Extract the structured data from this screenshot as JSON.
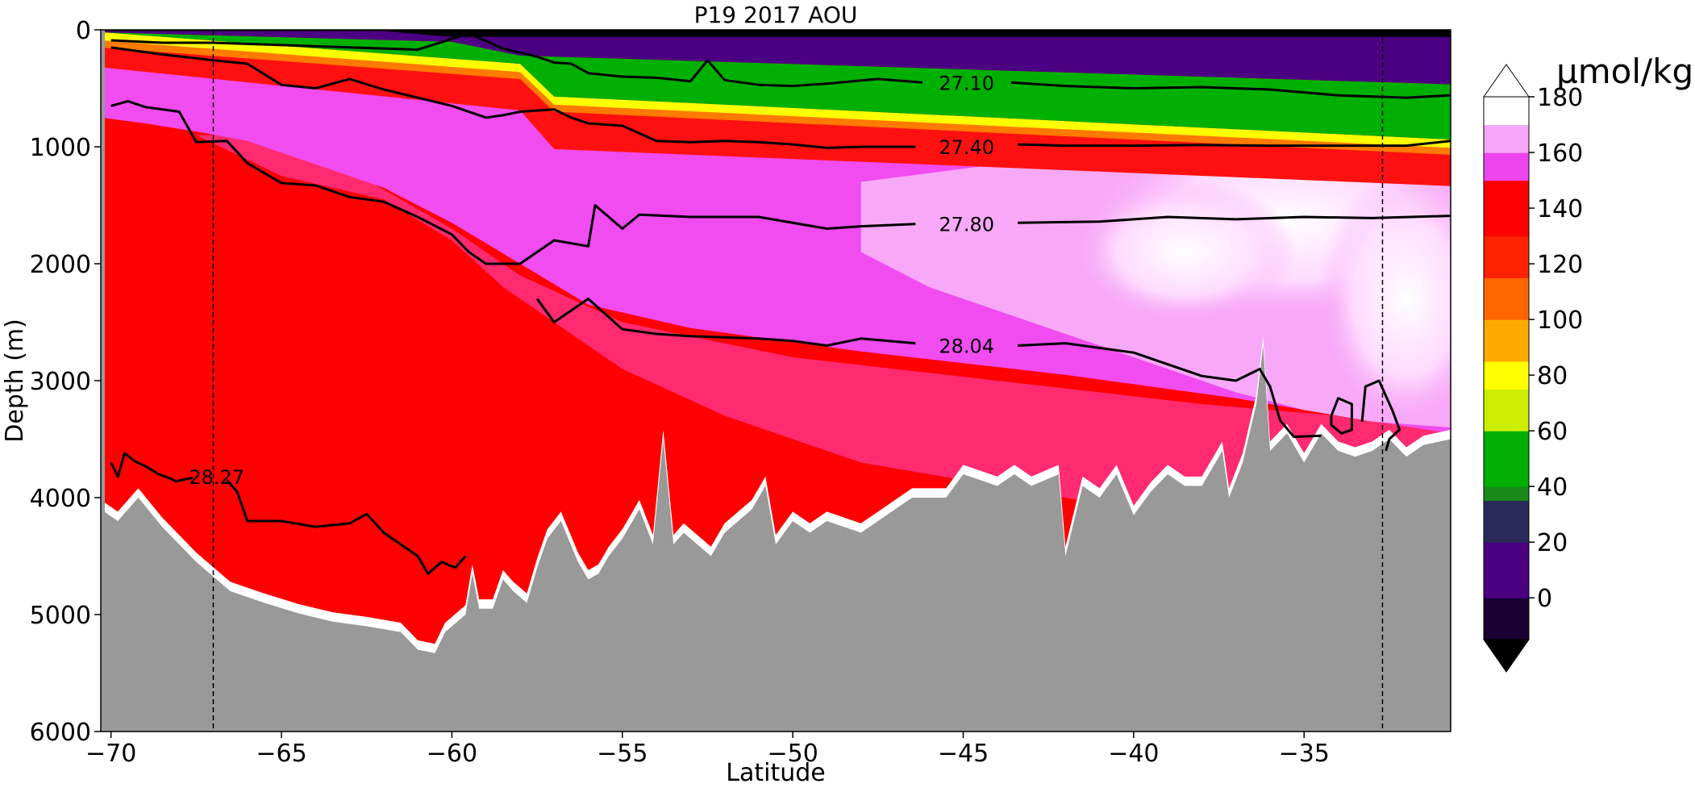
{
  "chart_data": {
    "type": "heatmap",
    "title": "P19 2017 AOU",
    "xlabel": "Latitude",
    "ylabel": "Depth (m)",
    "xlim": [
      -70.3,
      -30.7
    ],
    "ylim": [
      6000,
      0
    ],
    "x_ticks": [
      -70,
      -65,
      -60,
      -55,
      -50,
      -45,
      -40,
      -35
    ],
    "x_tick_labels": [
      "−70",
      "−65",
      "−60",
      "−55",
      "−50",
      "−45",
      "−40",
      "−35"
    ],
    "y_ticks": [
      0,
      1000,
      2000,
      3000,
      4000,
      5000,
      6000
    ],
    "y_tick_labels": [
      "0",
      "1000",
      "2000",
      "3000",
      "4000",
      "5000",
      "6000"
    ],
    "colorbar": {
      "label": "µmol/kg",
      "ticks": [
        0,
        20,
        40,
        60,
        80,
        100,
        120,
        140,
        160,
        180
      ],
      "tick_labels": [
        "0",
        "20",
        "40",
        "60",
        "80",
        "100",
        "120",
        "140",
        "160",
        "180"
      ],
      "range": [
        -15,
        180
      ],
      "extend": "both",
      "stops": [
        {
          "v": -15,
          "c": "#000000"
        },
        {
          "v": 0,
          "c": "#1a0033"
        },
        {
          "v": 18,
          "c": "#4b0082"
        },
        {
          "v": 35,
          "c": "#2a2a5a"
        },
        {
          "v": 42,
          "c": "#1a8a1a"
        },
        {
          "v": 60,
          "c": "#00b000"
        },
        {
          "v": 75,
          "c": "#ccee00"
        },
        {
          "v": 85,
          "c": "#ffff00"
        },
        {
          "v": 100,
          "c": "#ffaa00"
        },
        {
          "v": 115,
          "c": "#ff6600"
        },
        {
          "v": 130,
          "c": "#ff2200"
        },
        {
          "v": 148,
          "c": "#ff0000"
        },
        {
          "v": 149,
          "c": "#ff33aa"
        },
        {
          "v": 158,
          "c": "#ee44ee"
        },
        {
          "v": 170,
          "c": "#f6a6f6"
        },
        {
          "v": 180,
          "c": "#ffffff"
        }
      ]
    },
    "contour_labels": [
      {
        "text": "27.10",
        "x": -44.9,
        "y": 450
      },
      {
        "text": "27.40",
        "x": -44.9,
        "y": 1000
      },
      {
        "text": "27.80",
        "x": -44.9,
        "y": 1660
      },
      {
        "text": "28.04",
        "x": -44.9,
        "y": 2700
      },
      {
        "text": "28.27",
        "x": -66.9,
        "y": 3820
      }
    ],
    "contours": [
      {
        "level": "27.10",
        "points": [
          [
            -70.0,
            90
          ],
          [
            -68.5,
            110
          ],
          [
            -67,
            110
          ],
          [
            -65,
            130
          ],
          [
            -63,
            150
          ],
          [
            -61,
            170
          ],
          [
            -59.5,
            30
          ],
          [
            -58.5,
            160
          ],
          [
            -57.5,
            230
          ],
          [
            -57,
            280
          ],
          [
            -56.5,
            290
          ],
          [
            -56,
            370
          ],
          [
            -55,
            400
          ],
          [
            -54,
            410
          ],
          [
            -53,
            440
          ],
          [
            -52.5,
            260
          ],
          [
            -52,
            430
          ],
          [
            -51,
            470
          ],
          [
            -50,
            480
          ],
          [
            -49,
            460
          ],
          [
            -47.5,
            420
          ],
          [
            -46.2,
            450
          ]
        ]
      },
      {
        "level": "27.10",
        "points": [
          [
            -43.6,
            450
          ],
          [
            -42,
            480
          ],
          [
            -40,
            500
          ],
          [
            -38,
            490
          ],
          [
            -36,
            510
          ],
          [
            -34,
            560
          ],
          [
            -32,
            580
          ],
          [
            -30.7,
            560
          ]
        ]
      },
      {
        "level": "27.40",
        "points": [
          [
            -70.0,
            150
          ],
          [
            -68.5,
            210
          ],
          [
            -67,
            260
          ],
          [
            -66,
            290
          ],
          [
            -65,
            470
          ],
          [
            -64,
            500
          ],
          [
            -63,
            420
          ],
          [
            -62,
            510
          ],
          [
            -61,
            580
          ],
          [
            -60,
            650
          ],
          [
            -59,
            750
          ],
          [
            -58.5,
            730
          ],
          [
            -58,
            700
          ],
          [
            -57,
            680
          ],
          [
            -56.5,
            750
          ],
          [
            -56,
            800
          ],
          [
            -55,
            820
          ],
          [
            -54,
            950
          ],
          [
            -53,
            960
          ],
          [
            -52,
            950
          ],
          [
            -51,
            960
          ],
          [
            -50,
            980
          ],
          [
            -49,
            1010
          ],
          [
            -48,
            1000
          ],
          [
            -46.4,
            1000
          ]
        ]
      },
      {
        "level": "27.40",
        "points": [
          [
            -43.4,
            980
          ],
          [
            -42,
            990
          ],
          [
            -40,
            990
          ],
          [
            -38,
            985
          ],
          [
            -36,
            990
          ],
          [
            -34,
            990
          ],
          [
            -32,
            990
          ],
          [
            -30.7,
            950
          ]
        ]
      },
      {
        "level": "27.80",
        "points": [
          [
            -70.0,
            650
          ],
          [
            -69.5,
            610
          ],
          [
            -69,
            660
          ],
          [
            -68,
            700
          ],
          [
            -67.5,
            960
          ],
          [
            -66.6,
            950
          ],
          [
            -66,
            1140
          ],
          [
            -65,
            1310
          ],
          [
            -64,
            1330
          ],
          [
            -63,
            1430
          ],
          [
            -62,
            1470
          ],
          [
            -61,
            1600
          ],
          [
            -60,
            1750
          ],
          [
            -59.5,
            1900
          ],
          [
            -59,
            2000
          ],
          [
            -58,
            2000
          ],
          [
            -57,
            1800
          ],
          [
            -56,
            1850
          ],
          [
            -55.8,
            1500
          ],
          [
            -55,
            1700
          ],
          [
            -54.5,
            1580
          ],
          [
            -53,
            1600
          ],
          [
            -51,
            1600
          ],
          [
            -49,
            1700
          ],
          [
            -48,
            1680
          ],
          [
            -46.4,
            1660
          ]
        ]
      },
      {
        "level": "27.80",
        "points": [
          [
            -43.4,
            1650
          ],
          [
            -41,
            1640
          ],
          [
            -39,
            1600
          ],
          [
            -37,
            1620
          ],
          [
            -35,
            1600
          ],
          [
            -33,
            1610
          ],
          [
            -30.7,
            1590
          ]
        ]
      },
      {
        "level": "28.04",
        "points": [
          [
            -57.5,
            2300
          ],
          [
            -57,
            2500
          ],
          [
            -56,
            2300
          ],
          [
            -55,
            2560
          ],
          [
            -54,
            2600
          ],
          [
            -53,
            2620
          ],
          [
            -51,
            2640
          ],
          [
            -50,
            2660
          ],
          [
            -49,
            2700
          ],
          [
            -48,
            2640
          ],
          [
            -46.4,
            2680
          ]
        ]
      },
      {
        "level": "28.04",
        "points": [
          [
            -43.4,
            2700
          ],
          [
            -42,
            2680
          ],
          [
            -40,
            2760
          ],
          [
            -39,
            2860
          ],
          [
            -38,
            2960
          ],
          [
            -37,
            3000
          ],
          [
            -36.3,
            2900
          ],
          [
            -36,
            3050
          ],
          [
            -35.7,
            3340
          ],
          [
            -35.3,
            3480
          ],
          [
            -34.5,
            3470
          ]
        ]
      },
      {
        "level": "28.04",
        "points": [
          [
            -34.2,
            3300
          ],
          [
            -34.0,
            3150
          ],
          [
            -33.6,
            3200
          ],
          [
            -33.6,
            3420
          ],
          [
            -33.9,
            3450
          ],
          [
            -34.2,
            3380
          ],
          [
            -34.2,
            3300
          ]
        ]
      },
      {
        "level": "28.04",
        "points": [
          [
            -33.3,
            3350
          ],
          [
            -33.2,
            3050
          ],
          [
            -32.8,
            3000
          ],
          [
            -32.4,
            3260
          ],
          [
            -32.2,
            3420
          ],
          [
            -32.5,
            3500
          ],
          [
            -32.6,
            3600
          ]
        ]
      },
      {
        "level": "28.27",
        "points": [
          [
            -70.0,
            3700
          ],
          [
            -69.8,
            3820
          ],
          [
            -69.6,
            3620
          ],
          [
            -69.3,
            3690
          ],
          [
            -69,
            3730
          ],
          [
            -68.6,
            3800
          ],
          [
            -68.3,
            3830
          ],
          [
            -68.1,
            3860
          ],
          [
            -67.6,
            3830
          ]
        ]
      },
      {
        "level": "28.27",
        "points": [
          [
            -66.6,
            3850
          ],
          [
            -66.3,
            3950
          ],
          [
            -66,
            4200
          ],
          [
            -65,
            4200
          ],
          [
            -64,
            4250
          ],
          [
            -63,
            4220
          ],
          [
            -62.5,
            4140
          ],
          [
            -62,
            4300
          ],
          [
            -61,
            4500
          ],
          [
            -60.7,
            4650
          ],
          [
            -60.3,
            4550
          ],
          [
            -59.9,
            4600
          ],
          [
            -59.6,
            4500
          ]
        ]
      }
    ],
    "bathymetry_color": "#999999",
    "bathymetry": [
      [
        -70.3,
        4100
      ],
      [
        -69.8,
        4200
      ],
      [
        -69.2,
        4000
      ],
      [
        -68.5,
        4250
      ],
      [
        -67.5,
        4550
      ],
      [
        -66.5,
        4800
      ],
      [
        -65.5,
        4900
      ],
      [
        -64.5,
        4990
      ],
      [
        -63.5,
        5060
      ],
      [
        -62.5,
        5100
      ],
      [
        -61.5,
        5150
      ],
      [
        -61,
        5300
      ],
      [
        -60.5,
        5330
      ],
      [
        -60.2,
        5150
      ],
      [
        -59.6,
        5000
      ],
      [
        -59.4,
        4650
      ],
      [
        -59.2,
        4950
      ],
      [
        -58.8,
        4950
      ],
      [
        -58.5,
        4700
      ],
      [
        -58.2,
        4800
      ],
      [
        -57.8,
        4900
      ],
      [
        -57.5,
        4600
      ],
      [
        -57.2,
        4350
      ],
      [
        -56.8,
        4200
      ],
      [
        -56.3,
        4550
      ],
      [
        -56,
        4700
      ],
      [
        -55.7,
        4650
      ],
      [
        -55.4,
        4500
      ],
      [
        -55,
        4350
      ],
      [
        -54.5,
        4100
      ],
      [
        -54.1,
        4400
      ],
      [
        -53.8,
        3500
      ],
      [
        -53.5,
        4400
      ],
      [
        -53.2,
        4300
      ],
      [
        -52.8,
        4400
      ],
      [
        -52.4,
        4500
      ],
      [
        -52,
        4300
      ],
      [
        -51.6,
        4200
      ],
      [
        -51.2,
        4100
      ],
      [
        -50.8,
        3900
      ],
      [
        -50.5,
        4400
      ],
      [
        -50,
        4200
      ],
      [
        -49.5,
        4300
      ],
      [
        -49,
        4200
      ],
      [
        -48,
        4300
      ],
      [
        -47,
        4100
      ],
      [
        -46.5,
        4000
      ],
      [
        -45.5,
        4000
      ],
      [
        -45,
        3800
      ],
      [
        -44,
        3900
      ],
      [
        -43.5,
        3800
      ],
      [
        -43,
        3900
      ],
      [
        -42.2,
        3800
      ],
      [
        -42,
        4500
      ],
      [
        -41.5,
        3900
      ],
      [
        -41,
        4000
      ],
      [
        -40.5,
        3800
      ],
      [
        -40,
        4150
      ],
      [
        -39.5,
        3950
      ],
      [
        -39,
        3800
      ],
      [
        -38.5,
        3900
      ],
      [
        -38,
        3900
      ],
      [
        -37.7,
        3750
      ],
      [
        -37.4,
        3600
      ],
      [
        -37.2,
        4000
      ],
      [
        -36.8,
        3700
      ],
      [
        -36.4,
        3200
      ],
      [
        -36.2,
        2700
      ],
      [
        -36,
        3600
      ],
      [
        -35.5,
        3450
      ],
      [
        -35,
        3700
      ],
      [
        -34.5,
        3450
      ],
      [
        -34,
        3600
      ],
      [
        -33.5,
        3650
      ],
      [
        -33,
        3600
      ],
      [
        -32.5,
        3500
      ],
      [
        -32,
        3650
      ],
      [
        -31.5,
        3550
      ],
      [
        -30.7,
        3500
      ]
    ],
    "vertical_lines": [
      -67.0,
      -32.7
    ]
  }
}
